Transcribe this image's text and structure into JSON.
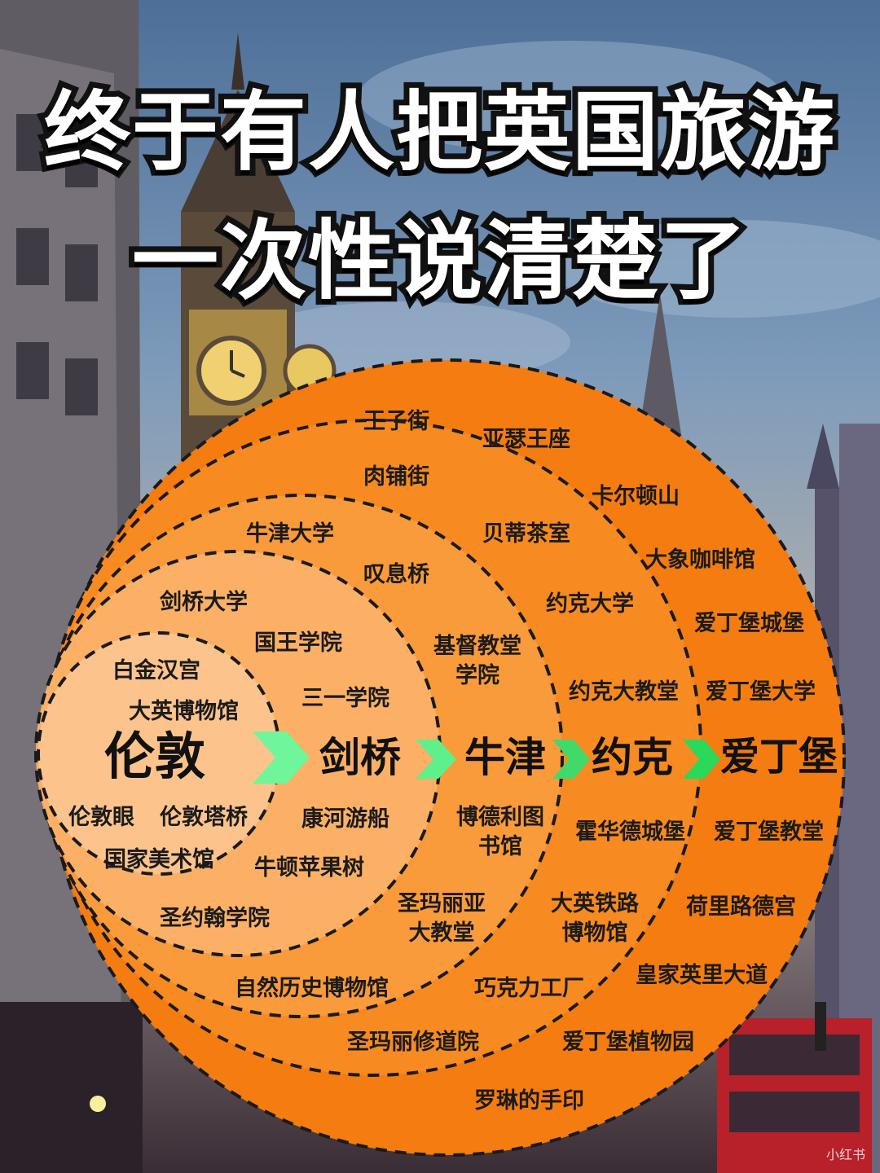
{
  "title": {
    "line1": "终于有人把英国旅游",
    "line2": "一次性说清楚了"
  },
  "cities": [
    "伦敦",
    "剑桥",
    "牛津",
    "约克",
    "爱丁堡"
  ],
  "attractions": {
    "london": [
      "白金汉宫",
      "大英博物馆",
      "伦敦眼",
      "伦敦塔桥",
      "国家美术馆"
    ],
    "cambridge": [
      "剑桥大学",
      "国王学院",
      "三一学院",
      "康河游船",
      "牛顿苹果树",
      "圣约翰学院"
    ],
    "oxford": [
      "牛津大学",
      "叹息桥",
      "基督教堂\n学院",
      "博德利图\n书馆",
      "圣玛丽亚\n大教堂",
      "自然历史博物馆"
    ],
    "york": [
      "肉铺街",
      "贝蒂茶室",
      "约克大学",
      "约克大教堂",
      "霍华德城堡",
      "大英铁路\n博物馆",
      "巧克力工厂",
      "圣玛丽修道院"
    ],
    "edinburgh": [
      "王子街",
      "亚瑟王座",
      "卡尔顿山",
      "大象咖啡馆",
      "爱丁堡城堡",
      "爱丁堡大学",
      "爱丁堡教堂",
      "荷里路德宫",
      "皇家英里大道",
      "爱丁堡植物园",
      "罗琳的手印"
    ]
  },
  "colors": {
    "london_fill": "#fcc48c",
    "cambridge_fill": "#fbb066",
    "oxford_fill": "#f99a3b",
    "york_fill": "#f78a20",
    "edinburgh_fill": "#f47c10",
    "arrow": "#5ef08a"
  },
  "watermark": "小红书"
}
